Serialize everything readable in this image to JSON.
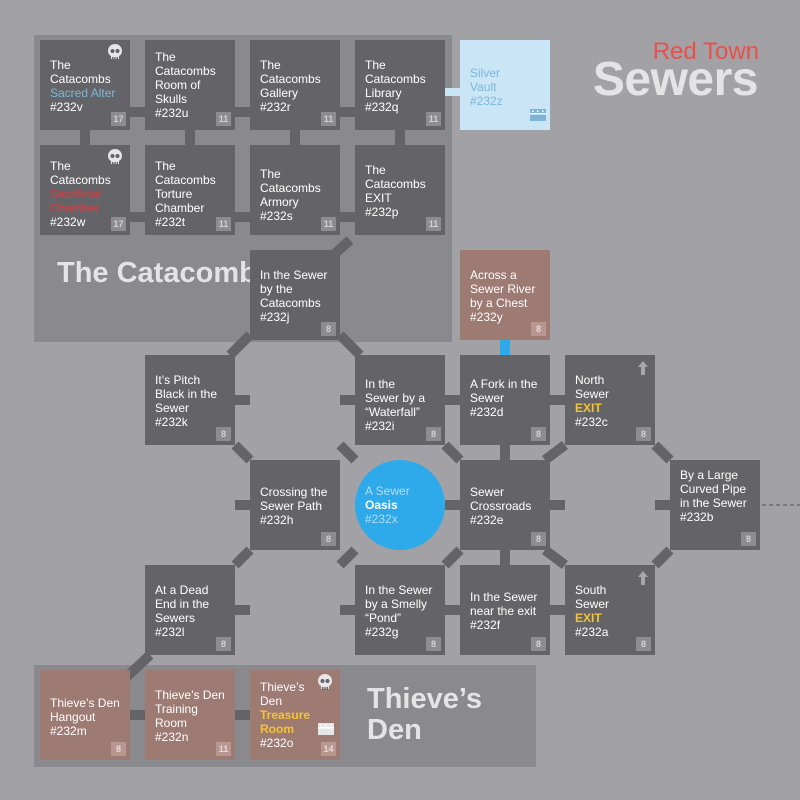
{
  "title": {
    "small": "Red Town",
    "big": "Sewers"
  },
  "areas": {
    "catacombs": "The Catacombs",
    "thieves_den": "Thieve’s Den"
  },
  "colors": {
    "background": "#a2a2a6",
    "room": "#646468",
    "area_panel": "#8a8a8e",
    "den_room": "#9d7a72",
    "vault": "#c9e5f6",
    "oasis": "#2eaaeb",
    "exit": "#f5c431",
    "danger": "#e2383d",
    "title_accent": "#e8504a"
  },
  "rooms": {
    "v": {
      "lines": [
        "The",
        "Catacombs"
      ],
      "hl": "Sacred Alter",
      "id": "#232v",
      "level": "17",
      "icon": "skull"
    },
    "u": {
      "lines": [
        "The",
        "Catacombs",
        "Room of",
        "Skulls"
      ],
      "id": "#232u",
      "level": "11"
    },
    "r": {
      "lines": [
        "The",
        "Catacombs",
        "Gallery"
      ],
      "id": "#232r",
      "level": "11"
    },
    "q": {
      "lines": [
        "The",
        "Catacombs",
        "Library"
      ],
      "id": "#232q",
      "level": "11"
    },
    "z": {
      "lines": [
        "Silver",
        "Vault"
      ],
      "id": "#232z",
      "icon": "chest"
    },
    "w": {
      "lines": [
        "The",
        "Catacombs"
      ],
      "hl": "Sacrificial Chamber",
      "id": "#232w",
      "level": "17",
      "icon": "skull"
    },
    "t": {
      "lines": [
        "The",
        "Catacombs",
        "Torture",
        "Chamber"
      ],
      "id": "#232t",
      "level": "11"
    },
    "s": {
      "lines": [
        "The",
        "Catacombs",
        "Armory"
      ],
      "id": "#232s",
      "level": "11"
    },
    "p": {
      "lines": [
        "The",
        "Catacombs",
        "EXIT"
      ],
      "id": "#232p",
      "level": "11"
    },
    "j": {
      "lines": [
        "In the Sewer",
        "by the",
        "Catacombs"
      ],
      "id": "#232j",
      "level": "8"
    },
    "y": {
      "lines": [
        "Across a",
        "Sewer River",
        "by a Chest"
      ],
      "id": "#232y",
      "level": "8"
    },
    "k": {
      "lines": [
        "It’s Pitch",
        "Black in the",
        "Sewer"
      ],
      "id": "#232k",
      "level": "8"
    },
    "i": {
      "lines": [
        "In the",
        "Sewer by a",
        "“Waterfall”"
      ],
      "id": "#232i",
      "level": "8"
    },
    "d": {
      "lines": [
        "A Fork in the",
        "Sewer"
      ],
      "id": "#232d",
      "level": "8"
    },
    "c": {
      "lines": [
        "North",
        "Sewer"
      ],
      "hl": "EXIT",
      "id": "#232c",
      "level": "8",
      "icon": "arrow"
    },
    "h": {
      "lines": [
        "Crossing the",
        "Sewer Path"
      ],
      "id": "#232h",
      "level": "8"
    },
    "x": {
      "lines": [
        "A Sewer"
      ],
      "hl": "Oasis",
      "id": "#232x"
    },
    "e": {
      "lines": [
        "Sewer",
        "Crossroads"
      ],
      "id": "#232e",
      "level": "8"
    },
    "b": {
      "lines": [
        "By a Large",
        "Curved Pipe",
        "in the Sewer"
      ],
      "id": "#232b",
      "level": "8"
    },
    "l": {
      "lines": [
        "At a Dead",
        "End in the",
        "Sewers"
      ],
      "id": "#232l",
      "level": "8"
    },
    "g": {
      "lines": [
        "In the Sewer",
        "by a Smelly",
        "“Pond”"
      ],
      "id": "#232g",
      "level": "8"
    },
    "f": {
      "lines": [
        "In the Sewer",
        "near the exit"
      ],
      "id": "#232f",
      "level": "8"
    },
    "a": {
      "lines": [
        "South",
        "Sewer"
      ],
      "hl": "EXIT",
      "id": "#232a",
      "level": "8",
      "icon": "arrow"
    },
    "m": {
      "lines": [
        "Thieve’s Den",
        "Hangout"
      ],
      "id": "#232m",
      "level": "8"
    },
    "n": {
      "lines": [
        "Thieve’s Den",
        "Training",
        "Room"
      ],
      "id": "#232n",
      "level": "11"
    },
    "o": {
      "lines": [
        "Thieve’s",
        "Den"
      ],
      "hl": "Treasure Room",
      "id": "#232o",
      "level": "14",
      "icon": "skull-chest"
    }
  }
}
